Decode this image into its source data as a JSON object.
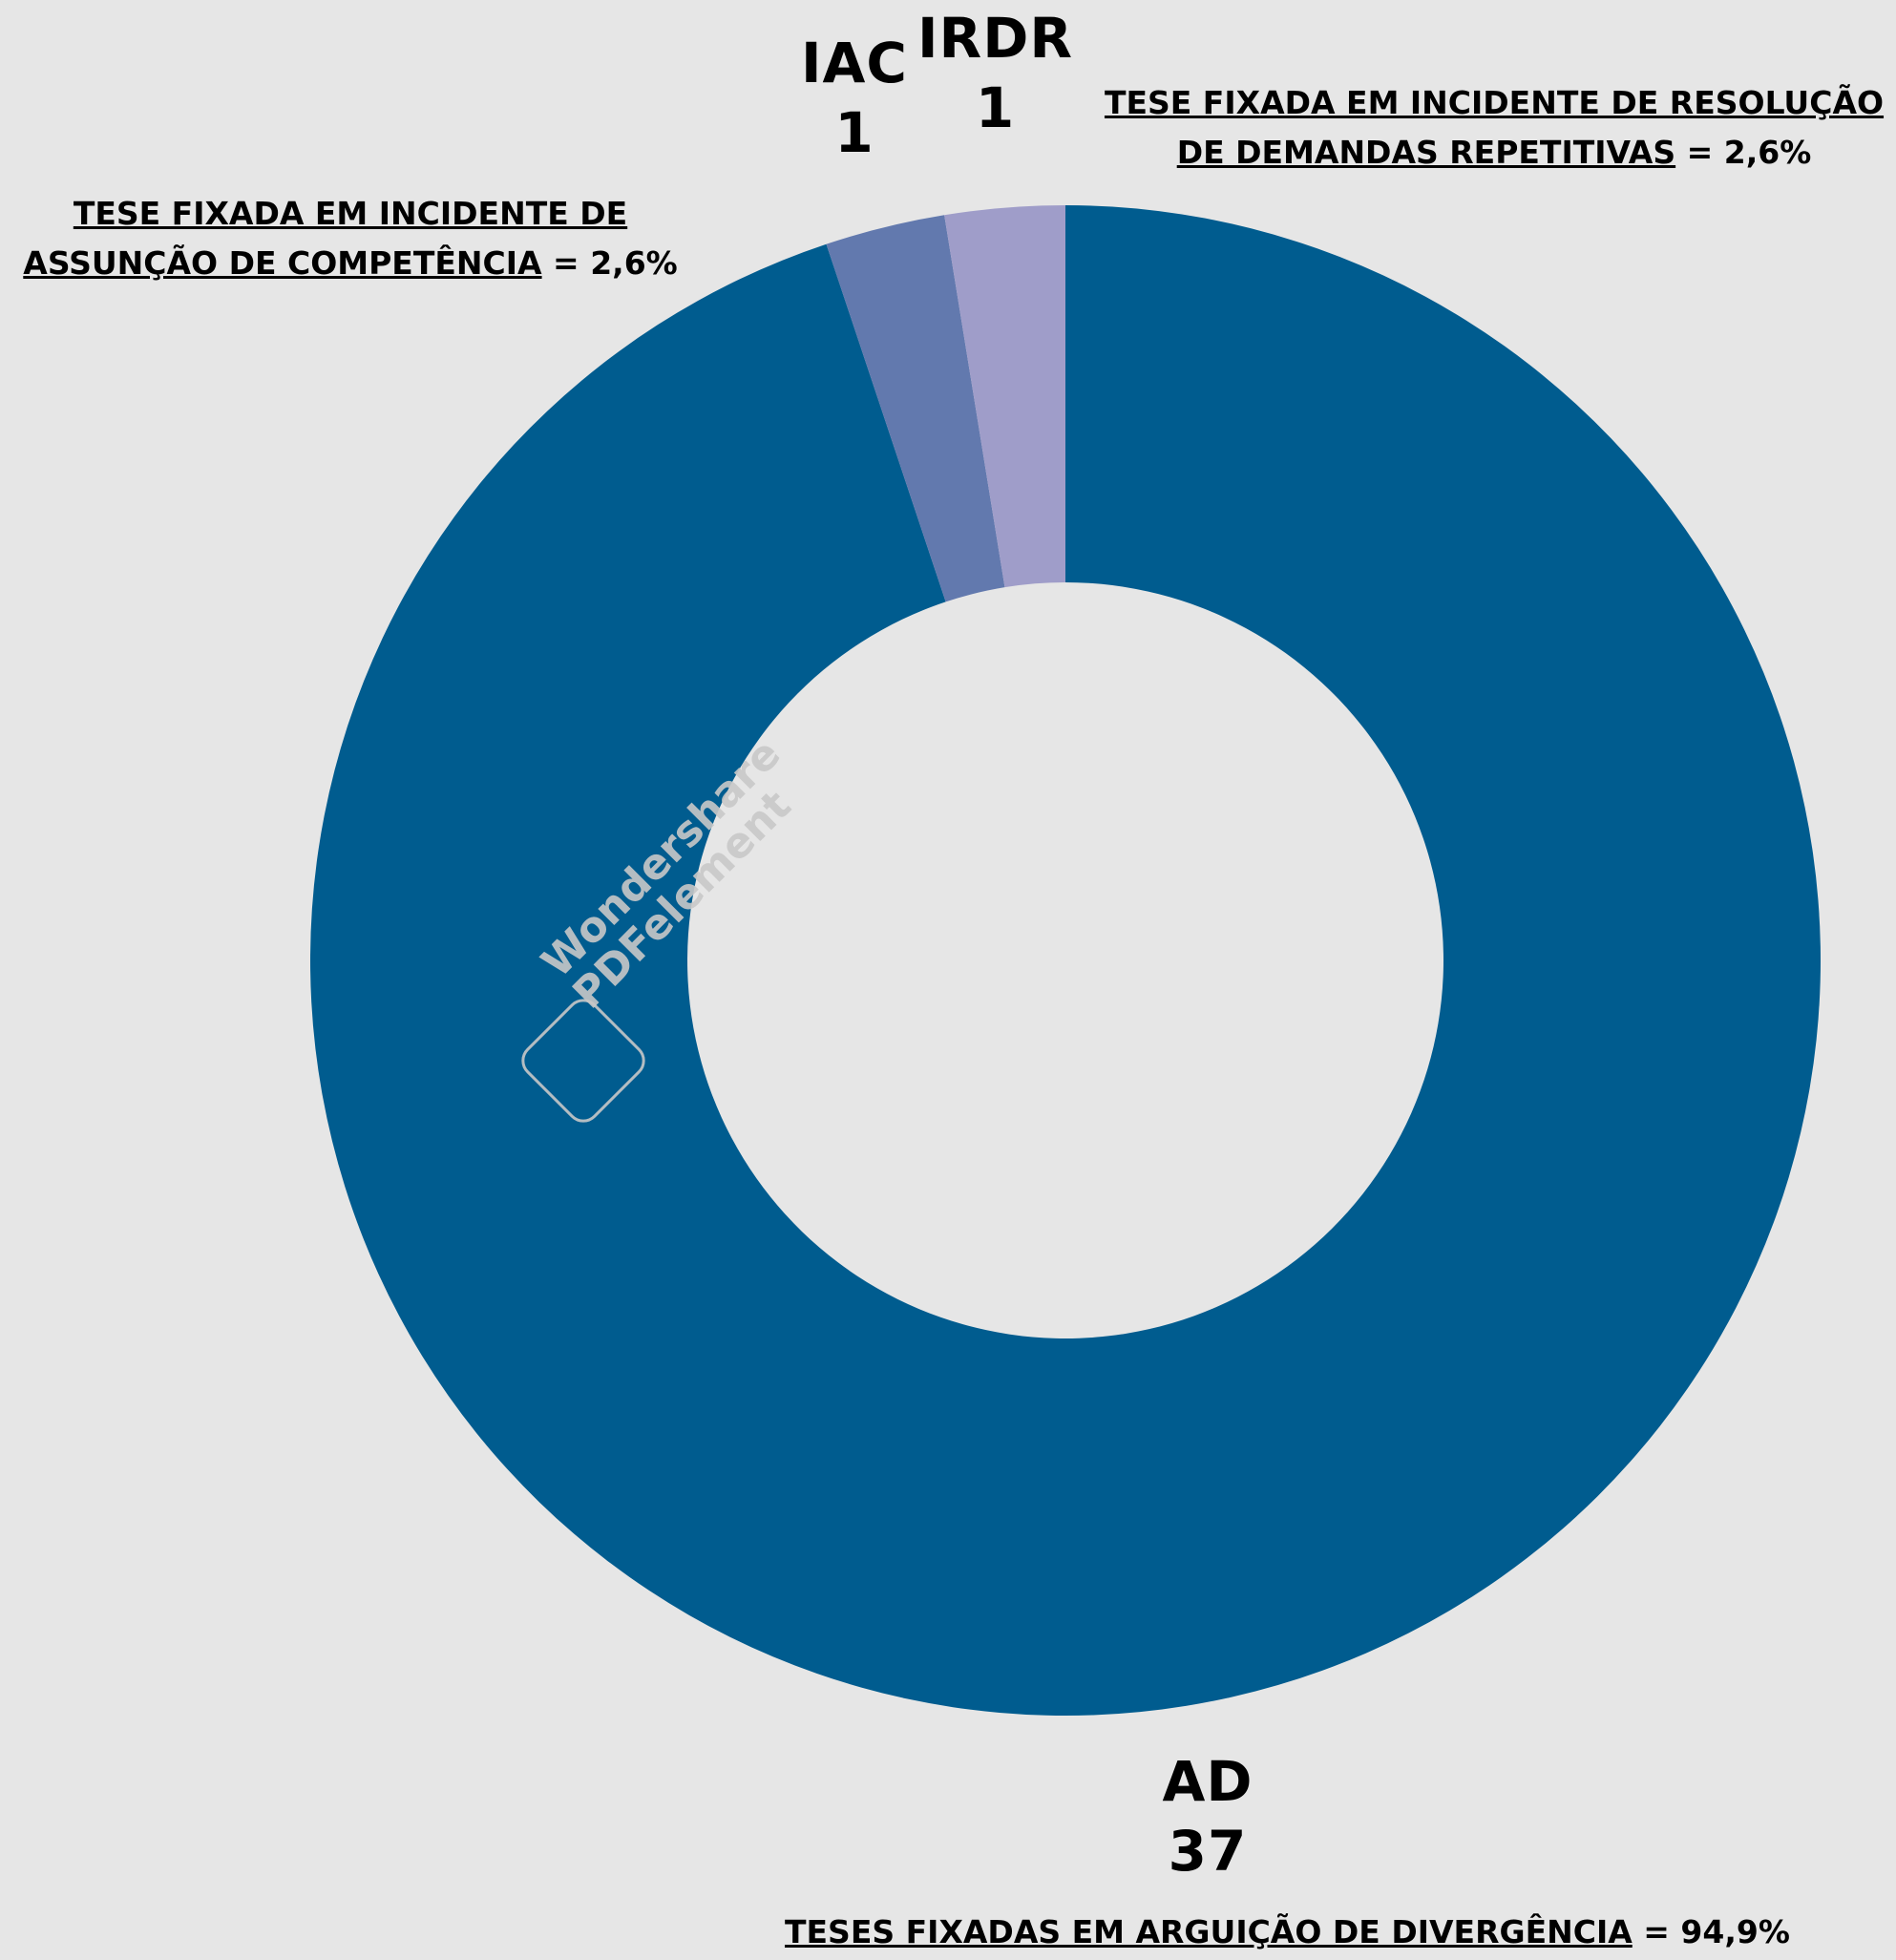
{
  "chart_data": {
    "type": "donut",
    "title": "",
    "categories": [
      "AD",
      "IAC",
      "IRDR"
    ],
    "values": [
      37,
      1,
      1
    ],
    "colors": [
      "#005c8f",
      "#6279ae",
      "#9f9dc9"
    ],
    "labels": [
      {
        "code": "AD",
        "count": "37",
        "description": "TESES FIXADAS EM ARGUIÇÃO DE DIVERGÊNCIA",
        "percent_text": " = 94,9%"
      },
      {
        "code": "IAC",
        "count": "1",
        "description_line1": "TESE FIXADA EM INCIDENTE DE",
        "description_line2": "ASSUNÇÃO DE COMPETÊNCIA",
        "percent_text": " = 2,6%"
      },
      {
        "code": "IRDR",
        "count": "1",
        "description_line1": "TESE FIXADA EM INCIDENTE DE RESOLUÇÃO",
        "description_line2": "DE DEMANDAS REPETITIVAS",
        "percent_text": " = 2,6%"
      }
    ],
    "percentages": [
      94.9,
      2.6,
      2.6
    ],
    "legend": "none",
    "grid": false
  },
  "watermark": {
    "line1": "Wondershare",
    "line2": "PDFelement"
  },
  "background_color": "#e6e6e6"
}
